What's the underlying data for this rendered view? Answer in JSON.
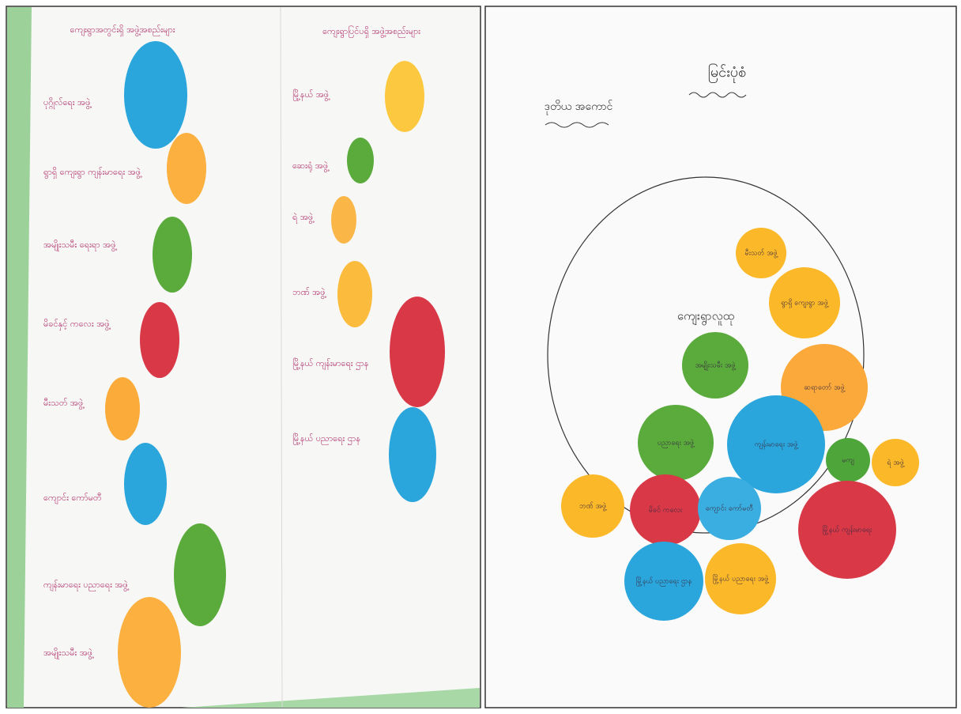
{
  "left": {
    "column_1": {
      "heading": "ကျေးရွာအတွင်းရှိ အဖွဲ့အစည်းများ",
      "items": [
        "ပုဂ္ဂိုလ်ရေး အဖွဲ့",
        "ရွာရှိ ကျေးရွာ ကျန်းမာရေး အဖွဲ့",
        "အမျိုးသမီး ရေးရာ အဖွဲ့",
        "မိခင်နှင့် ကလေး အဖွဲ့",
        "မီးသတ် အဖွဲ့",
        "ကျောင်း ကော်မတီ",
        "ကျန်းမာရေး ပညာရေး အဖွဲ့",
        "အမျိုးသမီး အဖွဲ့"
      ]
    },
    "column_2": {
      "heading": "ကျေးရွာပြင်ပရှိ အဖွဲ့အစည်းများ",
      "items": [
        "မြို့နယ် အဖွဲ့",
        "ဆေးရုံ အဖွဲ့",
        "ရဲ အဖွဲ့",
        "ဘဏ် အဖွဲ့",
        "မြို့နယ် ကျန်းမာရေး ဌာန",
        "မြို့နယ် ပညာရေး ဌာန"
      ]
    }
  },
  "right": {
    "title": "မြင်းပုံစံ",
    "subtitle": "ဒုတိယ အကောင်",
    "center_label": "ကျေးရွာလူထု",
    "circle_labels": [
      "မီးသတ် အဖွဲ့",
      "ရွာရှိ ကျေးရွာ အဖွဲ့",
      "ဆရာတော် အဖွဲ့",
      "အမျိုးသမီး အဖွဲ့",
      "ကျန်းမာရေး အဖွဲ့",
      "ပညာရေး အဖွဲ့",
      "မကျ",
      "ရဲ အဖွဲ့",
      "ဘဏ် အဖွဲ့",
      "မိခင် ကလေး",
      "ကျောင်း ကော်မတီ",
      "မြို့နယ် ကျန်းမာရေး",
      "မြို့နယ် ပညာရေး ဌာန",
      "မြို့နယ် ပညာရေး အဖွဲ့"
    ]
  }
}
